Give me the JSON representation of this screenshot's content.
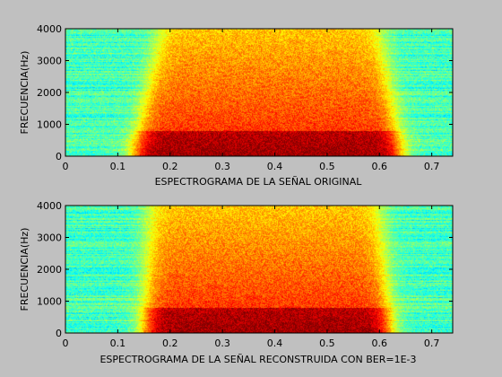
{
  "colors": {
    "figure_background": "#c0c0c0",
    "colormap": "jet",
    "axes_color": "#000000"
  },
  "chart_data": [
    {
      "type": "heatmap",
      "xlabel": "ESPECTROGRAMA DE LA SEÑAL ORIGINAL",
      "ylabel": "FRECUENCIA(Hz)",
      "xlim": [
        0,
        0.74
      ],
      "ylim": [
        0,
        4000
      ],
      "xticks": [
        0,
        0.1,
        0.2,
        0.3,
        0.4,
        0.5,
        0.6,
        0.7
      ],
      "yticks": [
        0,
        1000,
        2000,
        3000,
        4000
      ],
      "grid": false,
      "energy_region": {
        "start_s_at_0hz": 0.13,
        "start_s_at_4000hz": 0.18,
        "end_s_at_0hz": 0.64,
        "end_s_at_4000hz": 0.6,
        "strongest_band_hz": [
          0,
          800
        ]
      }
    },
    {
      "type": "heatmap",
      "xlabel": "ESPECTROGRAMA DE LA SEÑAL RECONSTRUIDA CON BER=1E-3",
      "ylabel": "FRECUENCIA(Hz)",
      "xlim": [
        0,
        0.74
      ],
      "ylim": [
        0,
        4000
      ],
      "xticks": [
        0,
        0.1,
        0.2,
        0.3,
        0.4,
        0.5,
        0.6,
        0.7
      ],
      "yticks": [
        0,
        1000,
        2000,
        3000,
        4000
      ],
      "grid": false,
      "energy_region": {
        "start_s_at_0hz": 0.15,
        "start_s_at_4000hz": 0.16,
        "end_s_at_0hz": 0.62,
        "end_s_at_4000hz": 0.6,
        "strongest_band_hz": [
          0,
          800
        ]
      }
    }
  ]
}
